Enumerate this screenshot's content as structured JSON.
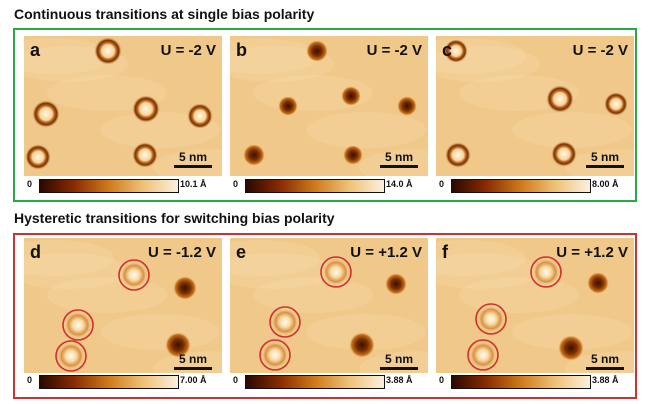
{
  "sections": [
    {
      "title": "Continuous transitions at single bias polarity",
      "border_color": "#2aa844",
      "panels": [
        {
          "label": "a",
          "voltage": "U = -2 V",
          "scale": "5 nm",
          "cbar_min": "0",
          "cbar_max": "10.1 Å"
        },
        {
          "label": "b",
          "voltage": "U = -2 V",
          "scale": "5 nm",
          "cbar_min": "0",
          "cbar_max": "14.0 Å"
        },
        {
          "label": "c",
          "voltage": "U = -2 V",
          "scale": "5 nm",
          "cbar_min": "0",
          "cbar_max": "8.00 Å"
        }
      ]
    },
    {
      "title": "Hysteretic transitions for switching bias polarity",
      "border_color": "#d32f2f",
      "panels": [
        {
          "label": "d",
          "voltage": "U = -1.2 V",
          "scale": "5 nm",
          "cbar_min": "0",
          "cbar_max": "7.00 Å"
        },
        {
          "label": "e",
          "voltage": "U = +1.2 V",
          "scale": "5 nm",
          "cbar_min": "0",
          "cbar_max": "3.88 Å"
        },
        {
          "label": "f",
          "voltage": "U = +1.2 V",
          "scale": "5 nm",
          "cbar_min": "0",
          "cbar_max": "3.88 Å"
        }
      ]
    }
  ],
  "colors": {
    "background": "#f0c889",
    "dark": "#6b2a00",
    "bright": "#fff3d8",
    "circle": "#d32f2f"
  },
  "colormap": "afmhot"
}
